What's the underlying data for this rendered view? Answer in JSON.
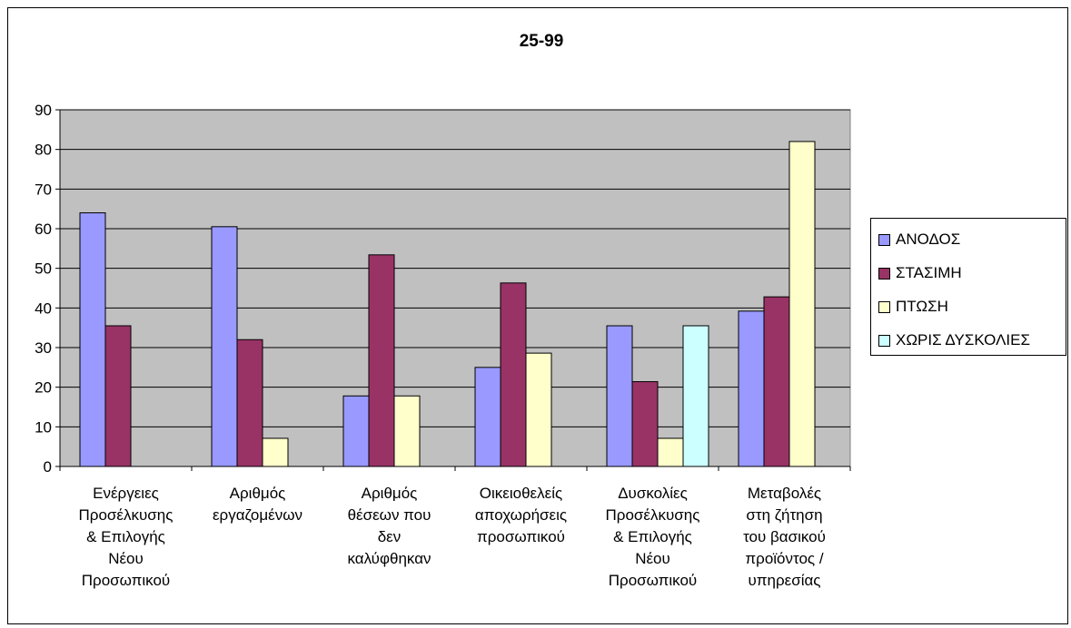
{
  "chart_data": {
    "type": "bar",
    "title": "25-99",
    "xlabel": "",
    "ylabel": "",
    "ylim": [
      0,
      90
    ],
    "yticks": [
      0,
      10,
      20,
      30,
      40,
      50,
      60,
      70,
      80,
      90
    ],
    "grid": true,
    "legend_position": "right",
    "plot_background": "#c0c0c0",
    "categories": [
      [
        "Ενέργειες",
        "Προσέλκυσης",
        "& Επιλογής",
        "Νέου",
        "Προσωπικού"
      ],
      [
        "Αριθμός",
        "εργαζομένων"
      ],
      [
        "Αριθμός",
        "θέσεων που",
        "δεν",
        "καλύφθηκαν"
      ],
      [
        "Οικειοθελείς",
        "αποχωρήσεις",
        "προσωπικού"
      ],
      [
        "Δυσκολίες",
        "Προσέλκυσης",
        "& Επιλογής",
        "Νέου",
        "Προσωπικού"
      ],
      [
        "Μεταβολές",
        "στη ζήτηση",
        "του βασικού",
        "προϊόντος /",
        "υπηρεσίας"
      ]
    ],
    "series": [
      {
        "name": "ΑΝΟΔΟΣ",
        "color": "#9999ff",
        "values": [
          64,
          60.5,
          17.8,
          25,
          35.5,
          39.2
        ]
      },
      {
        "name": "ΣΤΑΣΙΜΗ",
        "color": "#993366",
        "values": [
          35.5,
          32,
          53.4,
          46.3,
          21.4,
          42.8
        ]
      },
      {
        "name": "ΠΤΩΣΗ",
        "color": "#ffffcc",
        "values": [
          null,
          7.1,
          17.8,
          28.6,
          7.1,
          82
        ]
      },
      {
        "name": "ΧΩΡΙΣ ΔΥΣΚΟΛΙΕΣ",
        "color": "#ccffff",
        "values": [
          null,
          null,
          null,
          null,
          35.5,
          null
        ]
      }
    ]
  }
}
